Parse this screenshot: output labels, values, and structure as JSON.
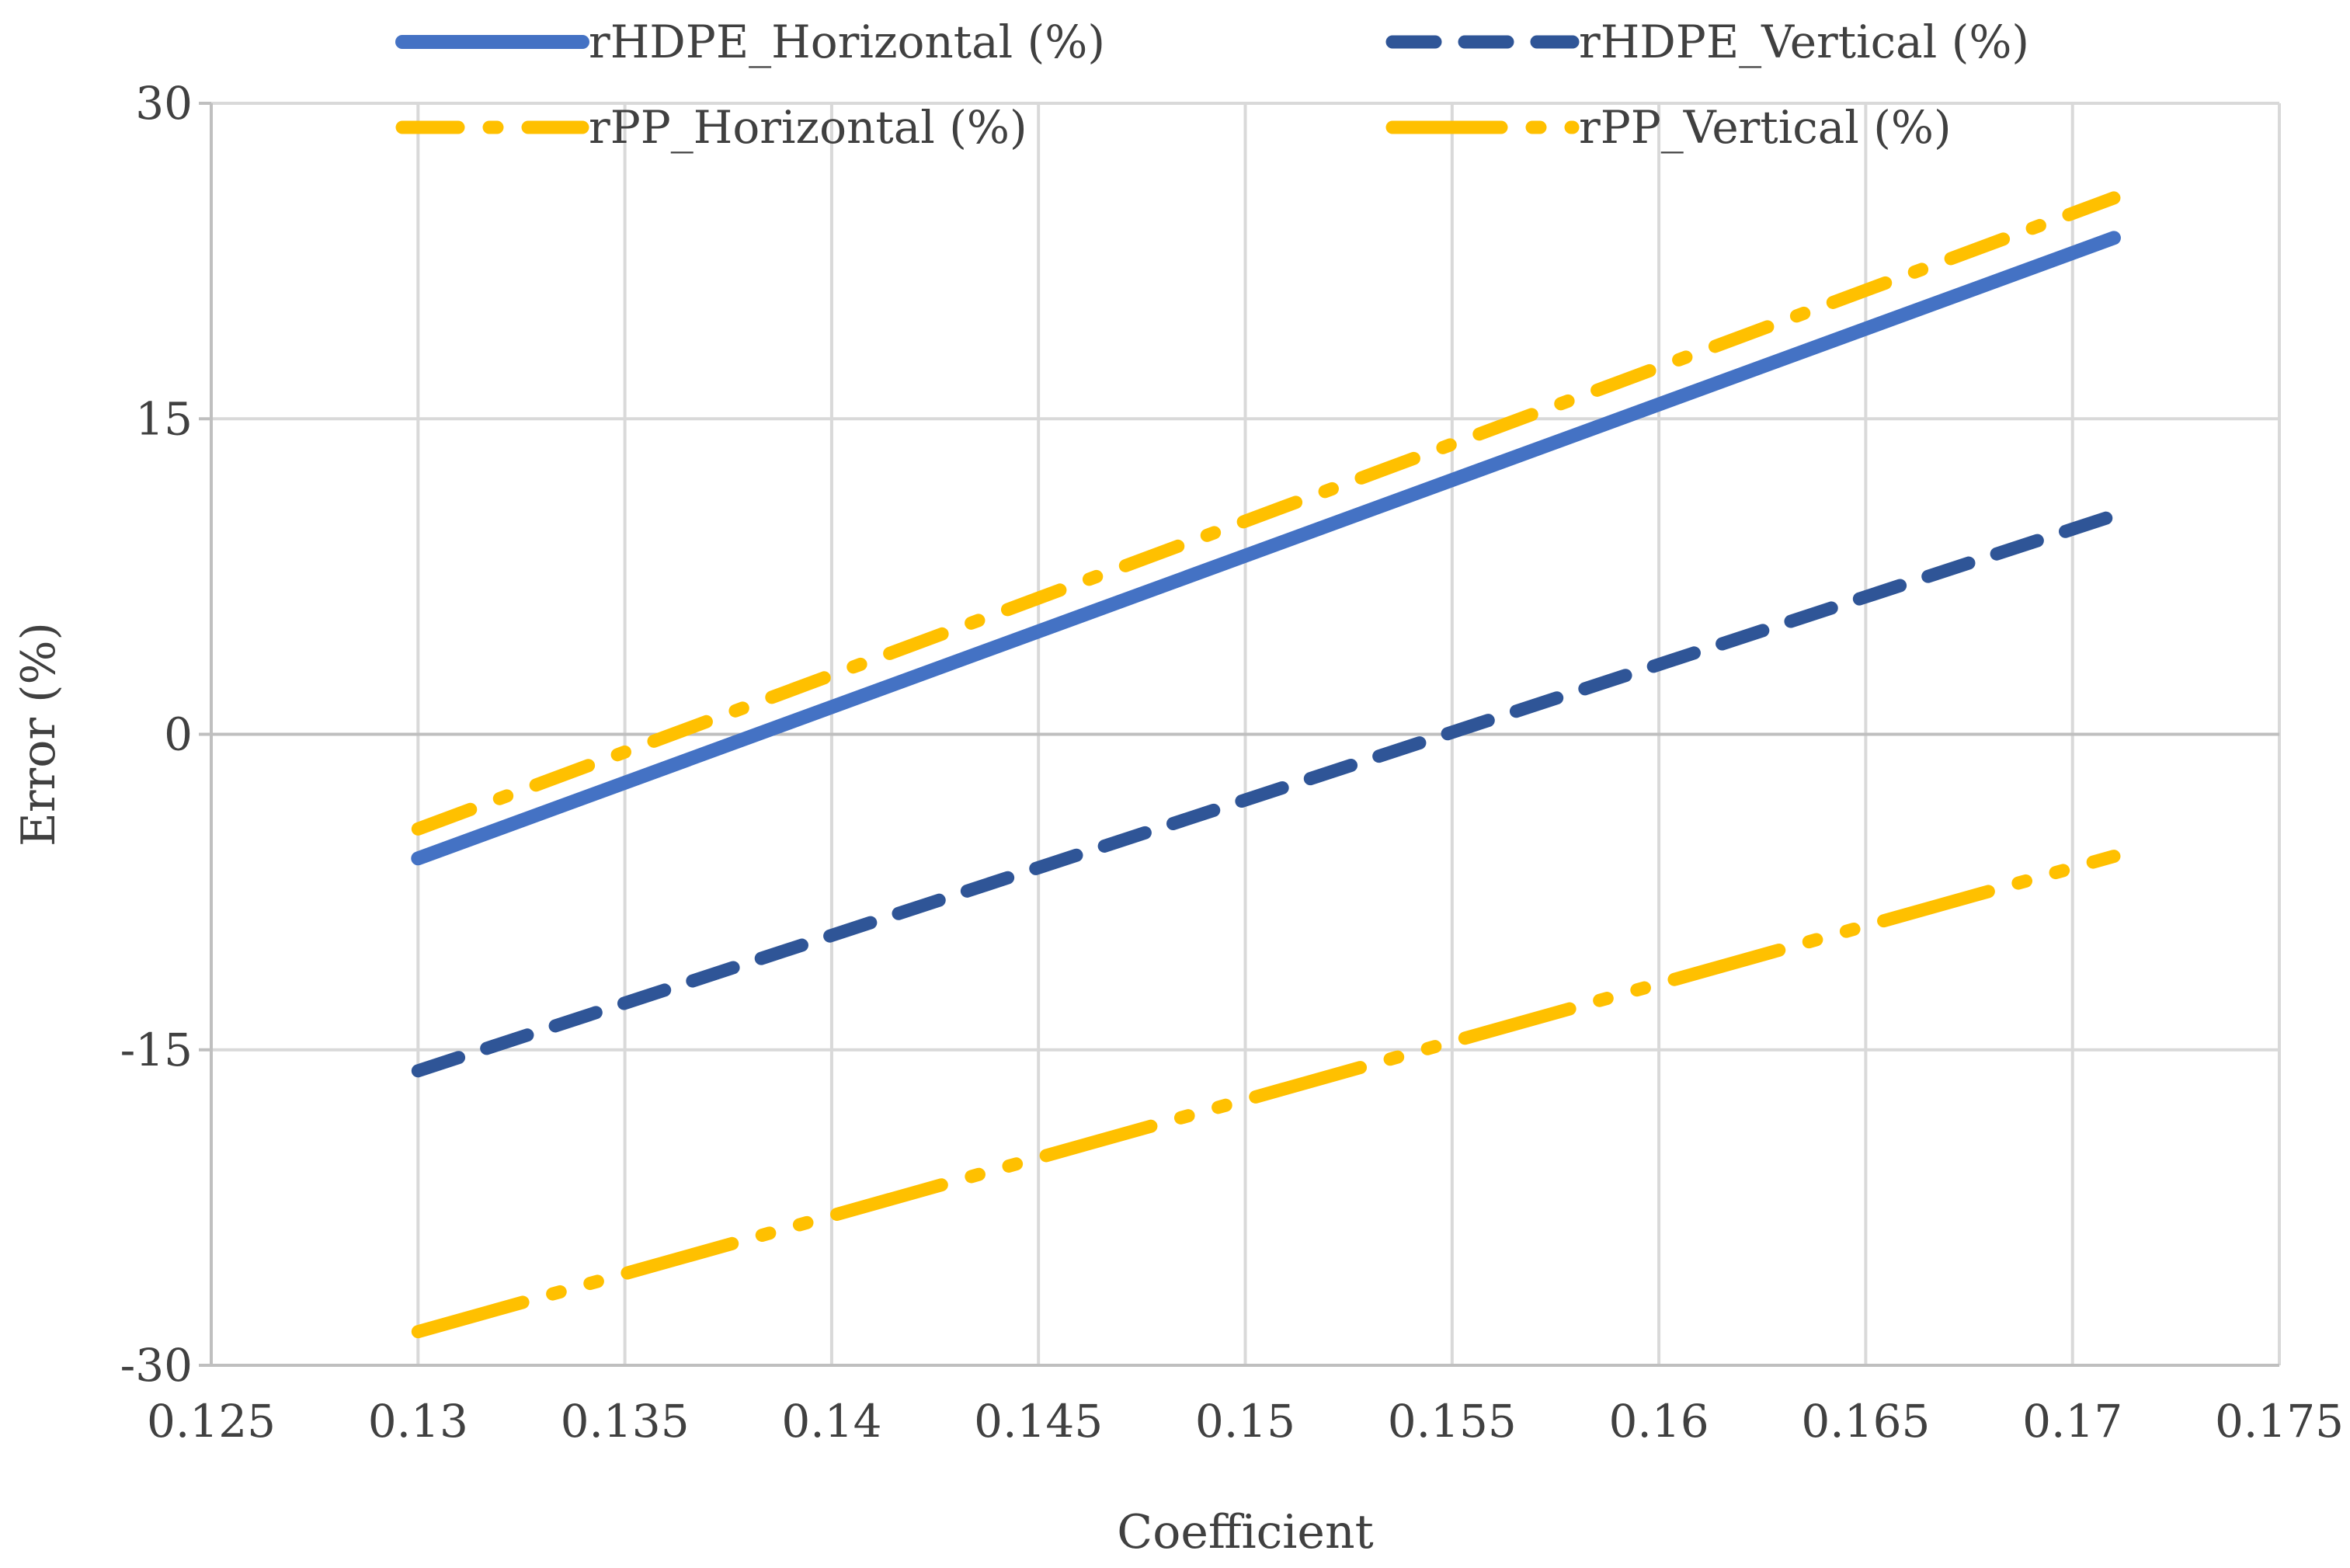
{
  "chart_data": {
    "type": "line",
    "title": "",
    "xlabel": "Coefficient",
    "ylabel": "Error (%)",
    "xlim": [
      0.125,
      0.175
    ],
    "ylim": [
      -30,
      30
    ],
    "x_ticks": [
      0.125,
      0.13,
      0.135,
      0.14,
      0.145,
      0.15,
      0.155,
      0.16,
      0.165,
      0.17,
      0.175
    ],
    "x_tick_labels": [
      "0.125",
      "0.13",
      "0.135",
      "0.14",
      "0.145",
      "0.15",
      "0.155",
      "0.16",
      "0.165",
      "0.17",
      "0.175"
    ],
    "y_ticks": [
      -30,
      -15,
      0,
      15,
      30
    ],
    "y_tick_labels": [
      "-30",
      "-15",
      "0",
      "15",
      "30"
    ],
    "grid": true,
    "legend_position": "top",
    "series": [
      {
        "name": "rHDPE_Horizontal (%)",
        "color": "#4472C4",
        "style": "solid",
        "x": [
          0.13,
          0.171
        ],
        "y": [
          -5.9,
          23.6
        ]
      },
      {
        "name": "rHDPE_Vertical (%)",
        "color": "#2F5597",
        "style": "dash",
        "x": [
          0.13,
          0.171
        ],
        "y": [
          -16.0,
          10.4
        ]
      },
      {
        "name": "rPP_Horizontal (%)",
        "color": "#FFC000",
        "style": "dash-dot",
        "x": [
          0.13,
          0.171
        ],
        "y": [
          -4.5,
          25.5
        ]
      },
      {
        "name": "rPP_Vertical (%)",
        "color": "#FFC000",
        "style": "long-dash-dot-dot",
        "x": [
          0.13,
          0.171
        ],
        "y": [
          -28.4,
          -5.8
        ]
      }
    ]
  }
}
